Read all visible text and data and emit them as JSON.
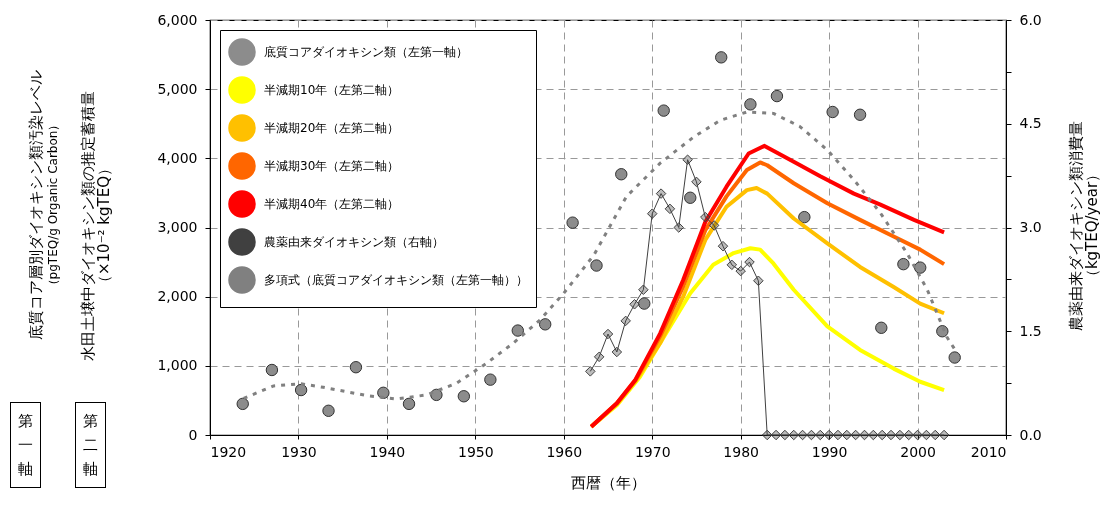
{
  "chart_data": {
    "type": "line",
    "xlabel": "西暦（年）",
    "ylabel": "水田土壌中ダイオキシン類の推定蓄積量（×10⁻² kgTEQ）",
    "y2label": "農薬由来ダイオキシン類消費量（kgTEQ/year）",
    "annotations": [
      "底質コア層別ダイオキシン類汚染レベル（pgTEQ/g Organic Carbon）",
      "第一軸",
      "第二軸"
    ],
    "xlim": [
      1920,
      2010
    ],
    "xticks": [
      1920,
      1930,
      1940,
      1950,
      1960,
      1970,
      1980,
      1990,
      2000,
      2010
    ],
    "ylim": [
      0,
      6000
    ],
    "yticks": [
      0,
      {
        "value": 1000,
        "label": "1,000"
      },
      {
        "value": 2000,
        "label": "2,000"
      },
      {
        "value": 3000,
        "label": "3,000"
      },
      {
        "value": 4000,
        "label": "4,000"
      },
      {
        "value": 5000,
        "label": "5,000"
      },
      {
        "value": 6000,
        "label": "6,000"
      }
    ],
    "y2lim": [
      0,
      6
    ],
    "y2ticks": [
      {
        "value": 0,
        "label": "0.0"
      },
      {
        "value": 0.75,
        "label": null
      },
      1.5,
      {
        "value": 2.25,
        "label": null
      },
      {
        "value": 3,
        "label": "3.0"
      },
      {
        "value": 3.75,
        "label": null
      },
      4.5,
      {
        "value": 5.25,
        "label": null
      },
      {
        "value": 6,
        "label": "6.0"
      }
    ],
    "grid": true,
    "legend": "top left",
    "series": [
      {
        "name": "底質コアダイオキシン類（左第一軸）",
        "type": "scatter",
        "marker": "circle",
        "color": "#8c8c8c",
        "x": [
          1923.7,
          1927.0,
          1930.3,
          1933.4,
          1936.5,
          1939.6,
          1942.5,
          1945.6,
          1948.7,
          1951.7,
          1954.8,
          1957.9,
          1961.0,
          1963.7,
          1966.5,
          1969.1,
          1971.3,
          1974.3,
          1977.8,
          1981.1,
          1984.1,
          1987.2,
          1990.4,
          1993.5,
          1995.9,
          1998.4,
          2000.3,
          2002.8,
          2004.2
        ],
        "values": [
          450,
          940,
          650,
          350,
          980,
          610,
          450,
          580,
          560,
          800,
          1510,
          1600,
          3070,
          2450,
          3770,
          1900,
          4690,
          3430,
          5460,
          4780,
          4900,
          3150,
          4670,
          4630,
          1550,
          2470,
          2420,
          1500,
          1120
        ]
      },
      {
        "name": "半減期10年（左第二軸）",
        "color": "#ffff00",
        "x": [
          1963.1,
          1966.0,
          1968.6,
          1970.9,
          1974.3,
          1976.9,
          1979.2,
          1981.1,
          1982.2,
          1983.7,
          1986.0,
          1989.8,
          1993.5,
          1997.3,
          2000.3,
          2003.0
        ],
        "values": [
          120,
          430,
          840,
          1330,
          2050,
          2460,
          2630,
          2700,
          2680,
          2480,
          2100,
          1570,
          1230,
          960,
          770,
          650
        ]
      },
      {
        "name": "半減期20年（左第二軸）",
        "color": "#ffc000",
        "x": [
          1963.1,
          1966.0,
          1968.1,
          1970.9,
          1973.5,
          1976.0,
          1978.4,
          1980.7,
          1981.8,
          1983.0,
          1986.0,
          1989.8,
          1993.5,
          1997.3,
          2000.3,
          2003.0
        ],
        "values": [
          120,
          450,
          780,
          1330,
          2000,
          2820,
          3300,
          3540,
          3570,
          3490,
          3130,
          2770,
          2430,
          2140,
          1900,
          1760
        ]
      },
      {
        "name": "半減期30年（左第二軸）",
        "color": "#ff6600",
        "x": [
          1963.1,
          1966.0,
          1968.1,
          1970.9,
          1973.5,
          1976.0,
          1978.4,
          1980.7,
          1982.2,
          1983.0,
          1986.0,
          1989.8,
          1993.5,
          1997.3,
          2000.3,
          2003.0
        ],
        "values": [
          120,
          460,
          790,
          1430,
          2150,
          2960,
          3450,
          3830,
          3940,
          3900,
          3640,
          3350,
          3110,
          2870,
          2680,
          2470
        ]
      },
      {
        "name": "半減期40年（左第二軸）",
        "color": "#ff0000",
        "x": [
          1963.1,
          1966.0,
          1968.1,
          1970.9,
          1973.5,
          1976.0,
          1978.4,
          1980.9,
          1982.7,
          1986.0,
          1989.0,
          1992.8,
          1995.8,
          1999.6,
          2003.0
        ],
        "values": [
          120,
          460,
          800,
          1470,
          2240,
          3080,
          3590,
          4070,
          4180,
          3950,
          3740,
          3490,
          3330,
          3110,
          2930
        ]
      },
      {
        "name": "農薬由来ダイオキシン類（右軸）",
        "axis": "y2",
        "marker": "diamond",
        "color": "#404040",
        "x": [
          1963,
          1964,
          1965,
          1966,
          1967,
          1968,
          1969,
          1970,
          1971,
          1972,
          1973,
          1974,
          1975,
          1976,
          1977,
          1978,
          1979,
          1980,
          1981,
          1982,
          1983,
          1984,
          1985,
          1986,
          1987,
          1988,
          1989,
          1990,
          1991,
          1992,
          1993,
          1994,
          1995,
          1996,
          1997,
          1998,
          1999,
          2000,
          2001,
          2002,
          2003
        ],
        "values": [
          0.92,
          1.13,
          1.46,
          1.2,
          1.65,
          1.89,
          2.1,
          3.2,
          3.49,
          3.27,
          3.0,
          3.98,
          3.66,
          3.15,
          3.03,
          2.73,
          2.46,
          2.37,
          2.5,
          2.23,
          0,
          0,
          0,
          0,
          0,
          0,
          0,
          0,
          0,
          0,
          0,
          0,
          0,
          0,
          0,
          0,
          0,
          0,
          0,
          0,
          0
        ]
      },
      {
        "name": "多項式（底質コアダイオキシン類（左第一軸））",
        "line_style": "dotted",
        "color": "#808080",
        "x": [
          1923.8,
          1927.2,
          1930.3,
          1932.8,
          1937.7,
          1941.1,
          1944.5,
          1947.9,
          1951.3,
          1954.3,
          1957.3,
          1960.0,
          1963.4,
          1967.1,
          1970.9,
          1974.7,
          1977.7,
          1980.7,
          1983.7,
          1986.7,
          1989.8,
          1992.8,
          1995.8,
          1998.8,
          2001.1,
          2003.3,
          2004.5
        ],
        "values": [
          530,
          710,
          740,
          690,
          570,
          520,
          580,
          750,
          1040,
          1330,
          1660,
          2050,
          2600,
          3450,
          3930,
          4310,
          4550,
          4670,
          4650,
          4460,
          4120,
          3690,
          3210,
          2630,
          2100,
          1420,
          1180
        ]
      }
    ]
  }
}
